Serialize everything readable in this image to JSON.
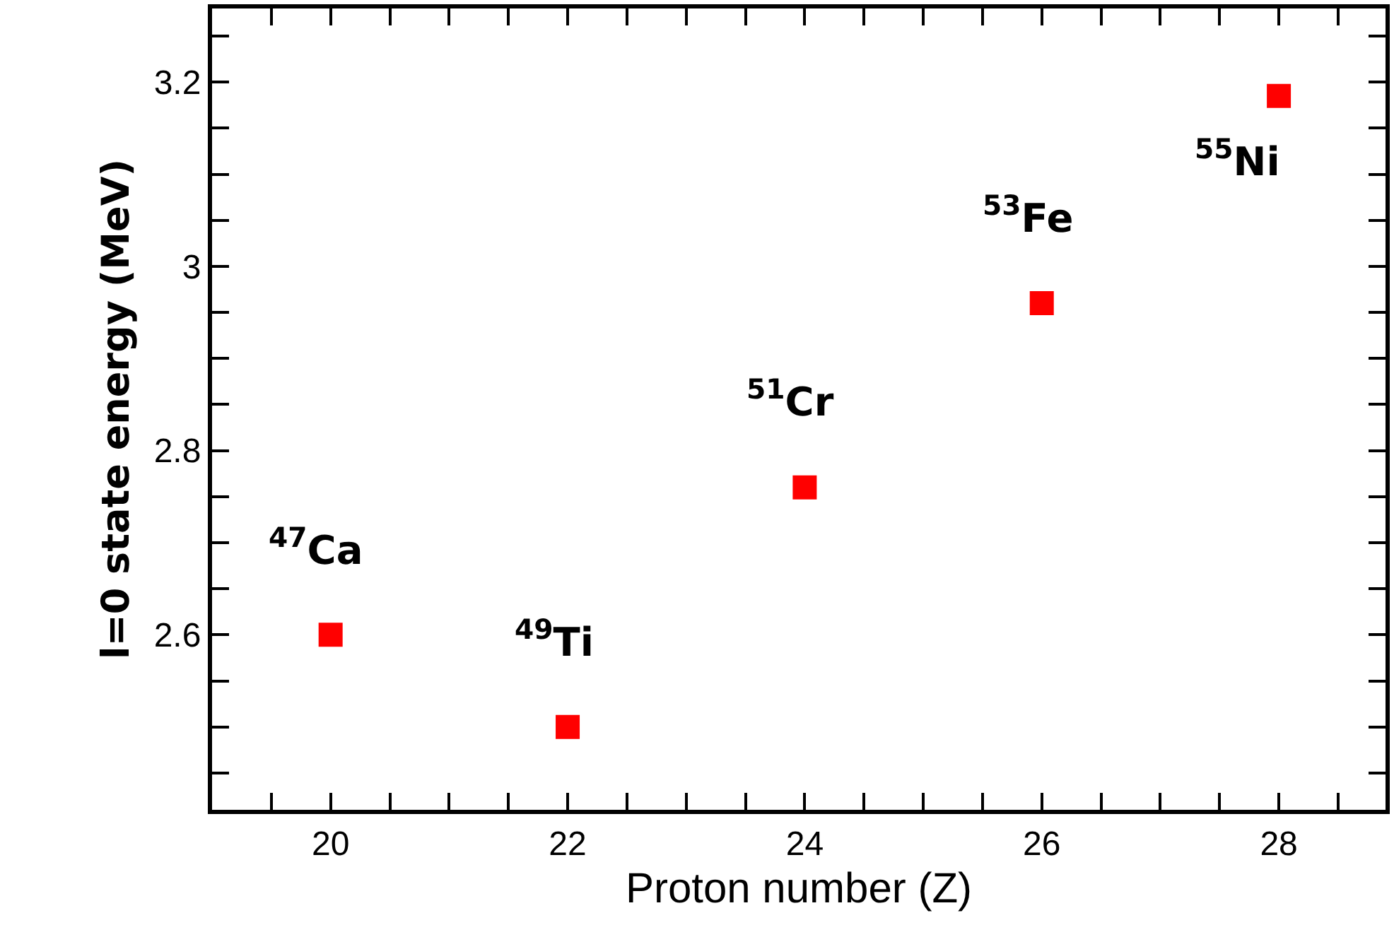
{
  "chart_data": {
    "type": "scatter",
    "xlabel": "Proton number (Z)",
    "ylabel": "l=0 state energy (MeV)",
    "x": [
      20,
      22,
      24,
      26,
      28
    ],
    "series": [
      {
        "color": "#ff0000",
        "values": [
          2.6,
          2.5,
          2.76,
          2.96,
          3.185
        ]
      }
    ],
    "marker": "square",
    "xlim": [
      19,
      28.9
    ],
    "ylim": [
      2.41,
      3.28
    ],
    "xticks": [
      {
        "value": 19.5,
        "label": null
      },
      20,
      {
        "value": 20.5,
        "label": null
      },
      {
        "value": 21,
        "label": null
      },
      {
        "value": 21.5,
        "label": null
      },
      22,
      {
        "value": 22.5,
        "label": null
      },
      {
        "value": 23,
        "label": null
      },
      {
        "value": 23.5,
        "label": null
      },
      24,
      {
        "value": 24.5,
        "label": null
      },
      {
        "value": 25,
        "label": null
      },
      {
        "value": 25.5,
        "label": null
      },
      26,
      {
        "value": 26.5,
        "label": null
      },
      {
        "value": 27,
        "label": null
      },
      {
        "value": 27.5,
        "label": null
      },
      28,
      {
        "value": 28.5,
        "label": null
      }
    ],
    "yticks": [
      {
        "value": 2.45,
        "label": null
      },
      {
        "value": 2.5,
        "label": null
      },
      {
        "value": 2.55,
        "label": null
      },
      2.6,
      {
        "value": 2.65,
        "label": null
      },
      {
        "value": 2.7,
        "label": null
      },
      {
        "value": 2.75,
        "label": null
      },
      2.8,
      {
        "value": 2.85,
        "label": null
      },
      {
        "value": 2.9,
        "label": null
      },
      {
        "value": 2.95,
        "label": null
      },
      {
        "value": 3,
        "label": "3"
      },
      {
        "value": 3.05,
        "label": null
      },
      {
        "value": 3.1,
        "label": null
      },
      {
        "value": 3.15,
        "label": null
      },
      3.2,
      {
        "value": 3.25,
        "label": null
      }
    ],
    "annotations": [
      {
        "text": "$^{47}$Ca",
        "x": 20,
        "y": 2.6
      },
      {
        "text": "$^{49}$Ti",
        "x": 22,
        "y": 2.5
      },
      {
        "text": "$^{51}$Cr",
        "x": 24,
        "y": 2.76
      },
      {
        "text": "$^{53}$Fe",
        "x": 26,
        "y": 2.96
      },
      {
        "text": "$^{55}$Ni",
        "x": 28,
        "y": 3.185
      }
    ]
  }
}
